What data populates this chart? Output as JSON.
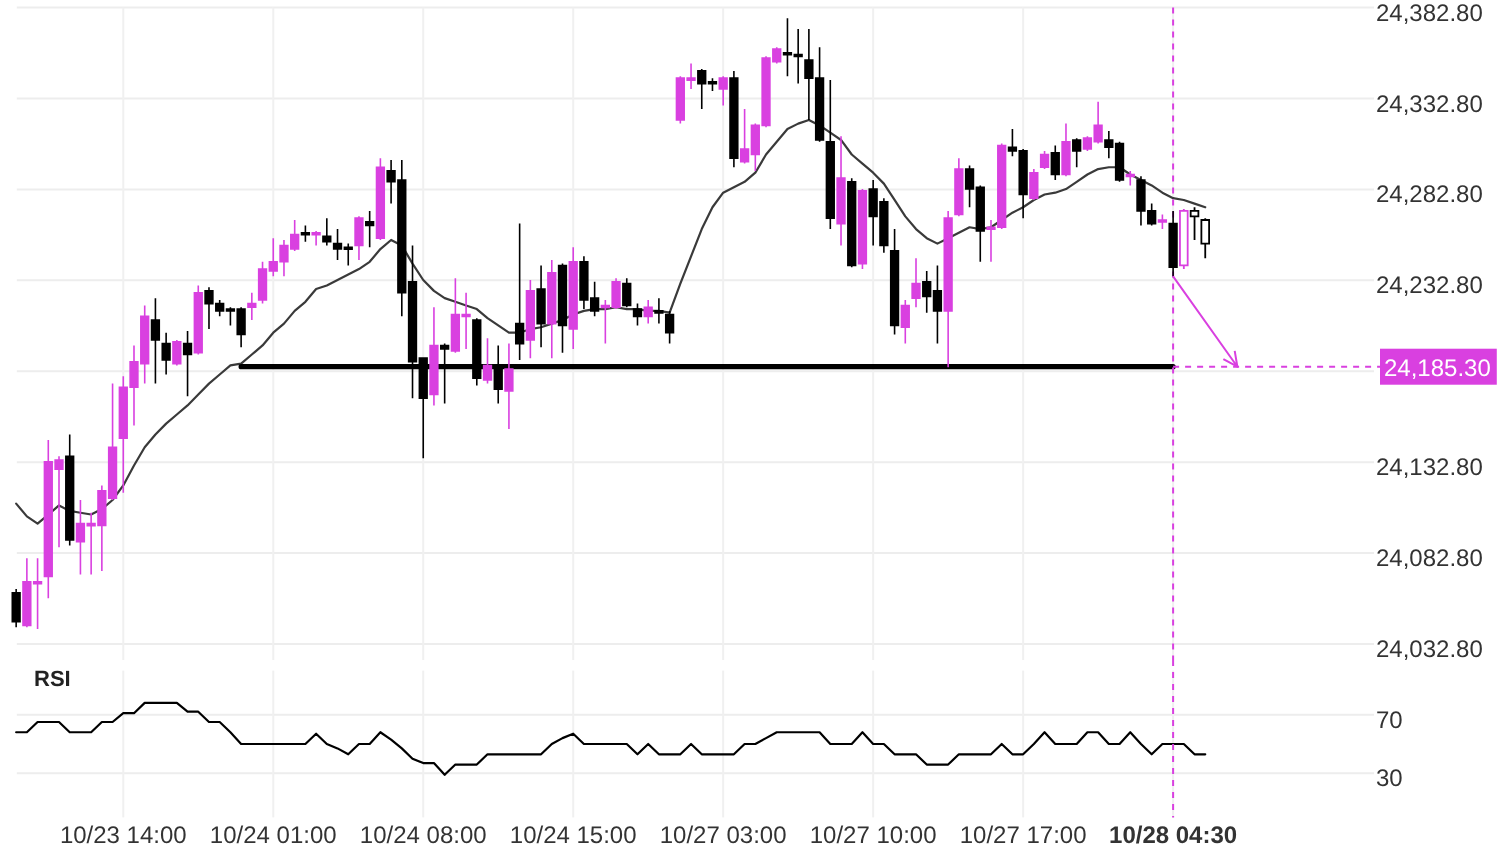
{
  "chart_data": [
    {
      "type": "candlestick",
      "categories": [
        null,
        null,
        null,
        null,
        null,
        null,
        null,
        null,
        null,
        null,
        "10/23 14:00",
        null,
        null,
        null,
        null,
        null,
        null,
        null,
        null,
        null,
        null,
        null,
        null,
        null,
        "10/24 01:00",
        null,
        null,
        null,
        null,
        null,
        null,
        null,
        null,
        null,
        null,
        null,
        null,
        null,
        "10/24 08:00",
        null,
        null,
        null,
        null,
        null,
        null,
        null,
        null,
        null,
        null,
        null,
        null,
        null,
        "10/24 15:00",
        null,
        null,
        null,
        null,
        null,
        null,
        null,
        null,
        null,
        null,
        null,
        null,
        null,
        "10/27 03:00",
        null,
        null,
        null,
        null,
        null,
        null,
        null,
        null,
        null,
        null,
        null,
        null,
        null,
        "10/27 10:00",
        null,
        null,
        null,
        null,
        null,
        null,
        null,
        null,
        null,
        null,
        null,
        null,
        null,
        "10/27 17:00",
        null,
        null,
        null,
        null,
        null,
        null,
        null,
        null,
        null,
        null,
        null,
        null,
        null,
        "10/28 04:30",
        null,
        null,
        null,
        null,
        null,
        null,
        null,
        null,
        null,
        null,
        null,
        null,
        null,
        null,
        null,
        null,
        null,
        null,
        null
      ],
      "ohlc": [
        [
          24061,
          24063,
          24042,
          24045
        ],
        [
          24043,
          24080,
          24042,
          24067
        ],
        [
          24066,
          24080,
          24041,
          24067
        ],
        [
          24070,
          24145,
          24058,
          24133
        ],
        [
          24129,
          24136,
          24086,
          24134
        ],
        [
          24136,
          24148,
          24087,
          24090
        ],
        [
          24089,
          24112,
          24071,
          24099
        ],
        [
          24098,
          24105,
          24071,
          24099
        ],
        [
          24098,
          24120,
          24073,
          24117
        ],
        [
          24113,
          24176,
          24112,
          24141
        ],
        [
          24146,
          24180,
          24116,
          24174
        ],
        [
          24174,
          24197,
          24153,
          24188
        ],
        [
          24187,
          24219,
          24176,
          24213
        ],
        [
          24211,
          24223,
          24176,
          24200
        ],
        [
          24198,
          24204,
          24181,
          24189
        ],
        [
          24187,
          24200,
          24186,
          24199
        ],
        [
          24198,
          24205,
          24169,
          24192
        ],
        [
          24193,
          24230,
          24192,
          24226
        ],
        [
          24227,
          24229,
          24206,
          24220
        ],
        [
          24220,
          24222,
          24213,
          24216
        ],
        [
          24217,
          24218,
          24208,
          24216
        ],
        [
          24217,
          24218,
          24196,
          24203
        ],
        [
          24218,
          24226,
          24211,
          24220
        ],
        [
          24222,
          24243,
          24220,
          24239
        ],
        [
          24238,
          24256,
          24235,
          24243
        ],
        [
          24243,
          24255,
          24235,
          24252
        ],
        [
          24250,
          24266,
          24249,
          24258
        ],
        [
          24259,
          24263,
          24254,
          24258
        ],
        [
          24258,
          24260,
          24252,
          24259
        ],
        [
          24257,
          24267,
          24252,
          24254
        ],
        [
          24253,
          24261,
          24244,
          24250
        ],
        [
          24251,
          24253,
          24241,
          24250
        ],
        [
          24252,
          24268,
          24244,
          24267
        ],
        [
          24265,
          24271,
          24251,
          24263
        ],
        [
          24256,
          24300,
          24255,
          24295
        ],
        [
          24293,
          24299,
          24275,
          24287
        ],
        [
          24288,
          24299,
          24213,
          24226
        ],
        [
          24232,
          24252,
          24168,
          24188
        ],
        [
          24190,
          24190,
          24135,
          24168
        ],
        [
          24170,
          24218,
          24164,
          24197
        ],
        [
          24197,
          24198,
          24165,
          24195
        ],
        [
          24194,
          24234,
          24193,
          24214
        ],
        [
          24213,
          24226,
          24195,
          24214
        ],
        [
          24211,
          24212,
          24175,
          24179
        ],
        [
          24178,
          24201,
          24176,
          24186
        ],
        [
          24186,
          24197,
          24165,
          24173
        ],
        [
          24172,
          24198,
          24151,
          24184
        ],
        [
          24209,
          24264,
          24189,
          24198
        ],
        [
          24200,
          24233,
          24190,
          24227
        ],
        [
          24228,
          24241,
          24196,
          24209
        ],
        [
          24209,
          24244,
          24190,
          24237
        ],
        [
          24241,
          24242,
          24193,
          24208
        ],
        [
          24206,
          24251,
          24195,
          24243
        ],
        [
          24243,
          24246,
          24217,
          24222
        ],
        [
          24223,
          24232,
          24213,
          24216
        ],
        [
          24218,
          24222,
          24198,
          24219
        ],
        [
          24218,
          24234,
          24217,
          24232
        ],
        [
          24231,
          24234,
          24218,
          24219
        ],
        [
          24217,
          24220,
          24208,
          24213
        ],
        [
          24213,
          24222,
          24209,
          24218
        ],
        [
          24216,
          24223,
          24209,
          24215
        ],
        [
          24214,
          24216,
          24198,
          24204
        ],
        [
          24321,
          24345,
          24319,
          24344
        ],
        [
          24343,
          24352,
          24338,
          24344
        ],
        [
          24348,
          24349,
          24327,
          24341
        ],
        [
          24342,
          24344,
          24337,
          24341
        ],
        [
          24338,
          24345,
          24329,
          24344
        ],
        [
          24344,
          24348,
          24295,
          24300
        ],
        [
          24298,
          24327,
          24297,
          24305
        ],
        [
          24302,
          24319,
          24293,
          24318
        ],
        [
          24318,
          24356,
          24317,
          24355
        ],
        [
          24353,
          24361,
          24352,
          24360
        ],
        [
          24358,
          24377,
          24345,
          24357
        ],
        [
          24357,
          24371,
          24341,
          24356
        ],
        [
          24354,
          24371,
          24321,
          24344
        ],
        [
          24344,
          24361,
          24309,
          24310
        ],
        [
          24309,
          24343,
          24261,
          24267
        ],
        [
          24264,
          24312,
          24252,
          24289
        ],
        [
          24287,
          24289,
          24240,
          24241
        ],
        [
          24242,
          24283,
          24239,
          24282
        ],
        [
          24283,
          24288,
          24252,
          24268
        ],
        [
          24276,
          24278,
          24248,
          24252
        ],
        [
          24249,
          24261,
          24203,
          24208
        ],
        [
          24207,
          24222,
          24198,
          24219
        ],
        [
          24223,
          24245,
          24218,
          24231
        ],
        [
          24232,
          24238,
          24215,
          24224
        ],
        [
          24227,
          24241,
          24198,
          24216
        ],
        [
          24216,
          24271,
          24185,
          24267
        ],
        [
          24269,
          24300,
          24268,
          24294
        ],
        [
          24294,
          24296,
          24273,
          24283
        ],
        [
          24284,
          24285,
          24243,
          24260
        ],
        [
          24261,
          24266,
          24243,
          24262
        ],
        [
          24262,
          24308,
          24261,
          24307
        ],
        [
          24306,
          24316,
          24301,
          24304
        ],
        [
          24304,
          24305,
          24267,
          24280
        ],
        [
          24278,
          24294,
          24277,
          24292
        ],
        [
          24295,
          24304,
          24294,
          24302
        ],
        [
          24303,
          24307,
          24288,
          24291
        ],
        [
          24291,
          24319,
          24290,
          24309
        ],
        [
          24310,
          24311,
          24295,
          24304
        ],
        [
          24305,
          24312,
          24304,
          24311
        ],
        [
          24309,
          24331,
          24308,
          24318
        ],
        [
          24310,
          24315,
          24300,
          24306
        ],
        [
          24308,
          24309,
          24287,
          24288
        ],
        [
          24290,
          24293,
          24285,
          24291
        ],
        [
          24288,
          24290,
          24263,
          24271
        ],
        [
          24271,
          24275,
          24263,
          24264
        ],
        [
          24265,
          24269,
          24261,
          24266
        ],
        [
          24264,
          24271,
          24235,
          24240
        ],
        [
          24241,
          24272,
          24239,
          24271
        ],
        [
          24271,
          24273,
          24255,
          24268
        ],
        [
          24266,
          24267,
          24245,
          24253
        ],
        null,
        null,
        null,
        null,
        null,
        null,
        null,
        null,
        null,
        null,
        null,
        null,
        null,
        null,
        null,
        null
      ],
      "colors": [
        "#000000",
        "#d940e0",
        "#d940e0",
        "#d940e0",
        "#d940e0",
        "#000000",
        "#d940e0",
        "#d940e0",
        "#d940e0",
        "#d940e0",
        "#d940e0",
        "#d940e0",
        "#d940e0",
        "#000000",
        "#000000",
        "#d940e0",
        "#000000",
        "#d940e0",
        "#000000",
        "#000000",
        "#000000",
        "#000000",
        "#d940e0",
        "#d940e0",
        "#d940e0",
        "#d940e0",
        "#d940e0",
        "#000000",
        "#d940e0",
        "#000000",
        "#000000",
        "#000000",
        "#d940e0",
        "#000000",
        "#d940e0",
        "#000000",
        "#000000",
        "#000000",
        "#000000",
        "#d940e0",
        "#000000",
        "#d940e0",
        "#d940e0",
        "#000000",
        "#d940e0",
        "#000000",
        "#d940e0",
        "#000000",
        "#d940e0",
        "#000000",
        "#d940e0",
        "#000000",
        "#d940e0",
        "#000000",
        "#000000",
        "#d940e0",
        "#d940e0",
        "#000000",
        "#000000",
        "#d940e0",
        "#000000",
        "#000000",
        "#d940e0",
        "#d940e0",
        "#000000",
        "#000000",
        "#d940e0",
        "#000000",
        "#d940e0",
        "#d940e0",
        "#d940e0",
        "#d940e0",
        "#000000",
        "#000000",
        "#000000",
        "#000000",
        "#000000",
        "#d940e0",
        "#000000",
        "#d940e0",
        "#000000",
        "#000000",
        "#000000",
        "#d940e0",
        "#d940e0",
        "#000000",
        "#000000",
        "#d940e0",
        "#d940e0",
        "#000000",
        "#000000",
        "#d940e0",
        "#d940e0",
        "#000000",
        "#000000",
        "#d940e0",
        "#d940e0",
        "#000000",
        "#d940e0",
        "#000000",
        "#d940e0",
        "#d940e0",
        "#000000",
        "#000000",
        "#d940e0",
        "#000000",
        "#000000",
        "#d940e0",
        "#000000",
        "#d940e0",
        "#000000",
        "#000000",
        null,
        null,
        null,
        null,
        null,
        null,
        null,
        null,
        null,
        null,
        null,
        null,
        null,
        null,
        null,
        null
      ],
      "series": [
        {
          "type": "line",
          "color": "#3a3a3a",
          "values": [
            24110,
            24103,
            24099,
            24104,
            24109,
            24106,
            24105,
            24104,
            24107,
            24112,
            24120,
            24131,
            24141,
            24148,
            24154,
            24159,
            24164,
            24170,
            24176,
            24181,
            24186,
            24187,
            24192,
            24197,
            24204,
            24209,
            24216,
            24221,
            24228,
            24230,
            24233,
            24236,
            24239,
            24243,
            24250,
            24255,
            24252,
            24242,
            24233,
            24227,
            24223,
            24221,
            24219,
            24217,
            24212,
            24208,
            24204,
            24204,
            24206,
            24207,
            24209,
            24211,
            24214,
            24216,
            24217,
            24217,
            24218,
            24217,
            24217,
            24216,
            24216,
            24215,
            24231,
            24246,
            24261,
            24273,
            24281,
            24284,
            24287,
            24292,
            24302,
            24309,
            24316,
            24319,
            24321,
            24318,
            24314,
            24310,
            24302,
            24297,
            24292,
            24286,
            24277,
            24268,
            24261,
            24256,
            24253,
            24256,
            24259,
            24262,
            24261,
            24262,
            24266,
            24270,
            24273,
            24277,
            24280,
            24281,
            24283,
            24287,
            24291,
            24294,
            24295,
            24295,
            24291,
            24288,
            24285,
            24281,
            24278,
            24277,
            24275,
            24273,
            null,
            null,
            null,
            null,
            null,
            null,
            null,
            null,
            null,
            null,
            null,
            null,
            null,
            null,
            null,
            null
          ]
        },
        {
          "type": "line",
          "color": "#000000",
          "values": [
            null,
            null,
            null,
            null,
            null,
            null,
            null,
            null,
            null,
            null,
            null,
            null,
            null,
            null,
            null,
            null,
            null,
            null,
            null,
            null,
            null,
            24185.3,
            24185.3,
            24185.3,
            24185.3,
            24185.3,
            24185.3,
            24185.3,
            24185.3,
            24185.3,
            24185.3,
            24185.3,
            24185.3,
            24185.3,
            24185.3,
            24185.3,
            24185.3,
            24185.3,
            24185.3,
            24185.3,
            24185.3,
            24185.3,
            24185.3,
            24185.3,
            24185.3,
            24185.3,
            24185.3,
            24185.3,
            24185.3,
            24185.3,
            24185.3,
            24185.3,
            24185.3,
            24185.3,
            24185.3,
            24185.3,
            24185.3,
            24185.3,
            24185.3,
            24185.3,
            24185.3,
            24185.3,
            24185.3,
            24185.3,
            24185.3,
            24185.3,
            24185.3,
            24185.3,
            24185.3,
            24185.3,
            24185.3,
            24185.3,
            24185.3,
            24185.3,
            24185.3,
            24185.3,
            24185.3,
            24185.3,
            24185.3,
            24185.3,
            24185.3,
            24185.3,
            24185.3,
            24185.3,
            24185.3,
            24185.3,
            24185.3,
            24185.3,
            24185.3,
            24185.3,
            24185.3,
            24185.3,
            24185.3,
            24185.3,
            24185.3,
            24185.3,
            24185.3,
            24185.3,
            24185.3,
            24185.3,
            24185.3,
            24185.3,
            24185.3,
            24185.3,
            24185.3,
            24185.3,
            24185.3,
            24185.3,
            24185.3,
            null,
            null,
            null,
            null,
            null,
            null,
            null,
            null,
            null,
            null,
            null,
            null,
            null,
            null,
            null,
            null,
            null,
            null,
            null
          ]
        }
      ],
      "ylim": [
        24024,
        24382.8
      ],
      "yticks": [
        {
          "value": 24032.8,
          "label": "24,032.80"
        },
        {
          "value": 24082.8,
          "label": "24,082.80"
        },
        {
          "value": 24132.8,
          "label": "24,132.80"
        },
        {
          "value": 24182.8,
          "label": null
        },
        {
          "value": 24232.8,
          "label": "24,232.80"
        },
        {
          "value": 24282.8,
          "label": "24,282.80"
        },
        {
          "value": 24332.8,
          "label": "24,332.80"
        },
        {
          "value": 24382.8,
          "label": "24,382.80"
        }
      ],
      "tick_labels": "y",
      "grid": true,
      "ref_lines": [
        {
          "axis": "y",
          "value": 24185.3,
          "label": "24,185.30",
          "color": "#d940e0",
          "line_style": "dashed"
        },
        {
          "axis": "x",
          "value": "10/28 04:30",
          "color": "#d940e0",
          "line_style": "dashed"
        }
      ]
    },
    {
      "type": "line",
      "title": "RSI",
      "categories": [
        null,
        null,
        null,
        null,
        null,
        null,
        null,
        null,
        null,
        null,
        "10/23 14:00",
        null,
        null,
        null,
        null,
        null,
        null,
        null,
        null,
        null,
        null,
        null,
        null,
        null,
        "10/24 01:00",
        null,
        null,
        null,
        null,
        null,
        null,
        null,
        null,
        null,
        null,
        null,
        null,
        null,
        "10/24 08:00",
        null,
        null,
        null,
        null,
        null,
        null,
        null,
        null,
        null,
        null,
        null,
        null,
        null,
        "10/24 15:00",
        null,
        null,
        null,
        null,
        null,
        null,
        null,
        null,
        null,
        null,
        null,
        null,
        null,
        "10/27 03:00",
        null,
        null,
        null,
        null,
        null,
        null,
        null,
        null,
        null,
        null,
        null,
        null,
        null,
        "10/27 10:00",
        null,
        null,
        null,
        null,
        null,
        null,
        null,
        null,
        null,
        null,
        null,
        null,
        null,
        "10/27 17:00",
        null,
        null,
        null,
        null,
        null,
        null,
        null,
        null,
        null,
        null,
        null,
        null,
        null,
        "10/28 04:30",
        null,
        null,
        null,
        null,
        null,
        null,
        null,
        null,
        null,
        null,
        null,
        null,
        null,
        null,
        null,
        null,
        null,
        null,
        null
      ],
      "series": [
        {
          "color": "#000000",
          "values": [
            58,
            58,
            65,
            65,
            65,
            58,
            58,
            58,
            65,
            65,
            71,
            71,
            78,
            78,
            78,
            78,
            72,
            72,
            65,
            65,
            58,
            50,
            50,
            50,
            50,
            50,
            50,
            50,
            57,
            50,
            47,
            43,
            50,
            50,
            58,
            53,
            47,
            40,
            37,
            37,
            29,
            36,
            36,
            36,
            43,
            43,
            43,
            43,
            43,
            43,
            50,
            54,
            57,
            50,
            50,
            50,
            50,
            50,
            43,
            50,
            43,
            43,
            43,
            50,
            43,
            43,
            43,
            43,
            50,
            50,
            54,
            58,
            58,
            58,
            58,
            58,
            50,
            50,
            50,
            58,
            50,
            50,
            43,
            43,
            43,
            36,
            36,
            36,
            43,
            43,
            43,
            43,
            50,
            43,
            43,
            50,
            58,
            50,
            50,
            50,
            58,
            58,
            50,
            50,
            58,
            50,
            43,
            50,
            50,
            50,
            43,
            43,
            null,
            null,
            null,
            null,
            null,
            null,
            null,
            null,
            null,
            null,
            null,
            null,
            null,
            null,
            null,
            null
          ]
        }
      ],
      "ylim": [
        0,
        100
      ],
      "yticks": [
        30,
        70
      ],
      "grid": true,
      "ref_lines": [
        {
          "axis": "x",
          "value": "10/28 04:30",
          "color": "#d940e0",
          "line_style": "dashed"
        }
      ]
    }
  ]
}
